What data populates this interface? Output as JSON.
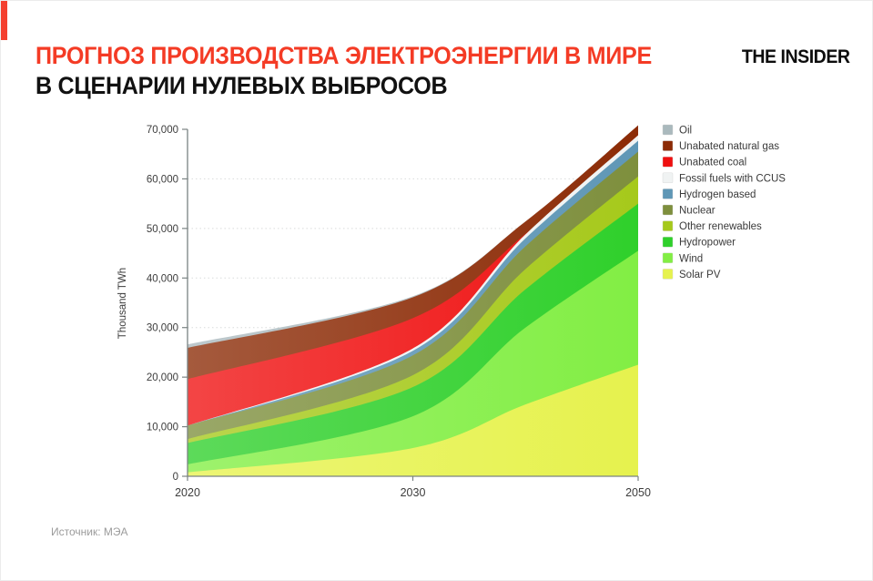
{
  "header": {
    "title_line1": "ПРОГНОЗ ПРОИЗВОДСТВА ЭЛЕКТРОЭНЕРГИИ В МИРЕ",
    "title_line2": "В СЦЕНАРИИ НУЛЕВЫХ ВЫБРОСОВ",
    "logo": "THE INSIDER",
    "accent_color": "#F4402F",
    "title_color": "#F43B25"
  },
  "footer": {
    "source": "Источник: МЭА"
  },
  "chart_data": {
    "type": "area",
    "stacked": true,
    "ylabel": "Thousand TWh",
    "ylim": [
      0,
      70000
    ],
    "y_ticks": [
      0,
      10000,
      20000,
      30000,
      40000,
      50000,
      60000,
      70000
    ],
    "y_tick_labels": [
      "0",
      "10,000",
      "20,000",
      "30,000",
      "40,000",
      "50,000",
      "60,000",
      "70,000"
    ],
    "x": [
      2020,
      2030,
      2040,
      2050
    ],
    "x_axis_positions": [
      0,
      0.5,
      0.75,
      1
    ],
    "x_tick_labels": [
      "2020",
      "2030",
      "2050"
    ],
    "x_tick_positions": [
      0,
      0.5,
      1
    ],
    "grid": "dotted-horizontal",
    "legend_position": "right",
    "axis_color": "#7a8383",
    "grid_color": "#d9dcdc",
    "tick_label_color": "#3c3c3c",
    "legend_text_color": "#3a3a3a",
    "series_bottom_to_top": [
      {
        "name": "Solar PV",
        "color": "#E6F24E",
        "values": [
          800,
          5700,
          14500,
          22500
        ]
      },
      {
        "name": "Wind",
        "color": "#82EE44",
        "values": [
          1600,
          6400,
          15500,
          23000
        ]
      },
      {
        "name": "Hydropower",
        "color": "#2FD02B",
        "values": [
          4300,
          5900,
          7700,
          9500
        ]
      },
      {
        "name": "Other renewables",
        "color": "#A6C91B",
        "values": [
          800,
          2400,
          4100,
          5500
        ]
      },
      {
        "name": "Nuclear",
        "color": "#7E8F3D",
        "values": [
          2700,
          4000,
          4600,
          5000
        ]
      },
      {
        "name": "Hydrogen based",
        "color": "#5F97B6",
        "values": [
          0,
          900,
          1600,
          2200
        ]
      },
      {
        "name": "Fossil fuels with CCUS",
        "color": "#F0F3F3",
        "values": [
          0,
          500,
          800,
          1100
        ]
      },
      {
        "name": "Unabated coal",
        "color": "#EF1010",
        "values": [
          9400,
          6100,
          100,
          0
        ]
      },
      {
        "name": "Unabated natural gas",
        "color": "#8C2B06",
        "values": [
          6300,
          4200,
          2500,
          2000
        ]
      },
      {
        "name": "Oil",
        "color": "#AAB9BD",
        "values": [
          700,
          200,
          0,
          0
        ]
      }
    ]
  }
}
